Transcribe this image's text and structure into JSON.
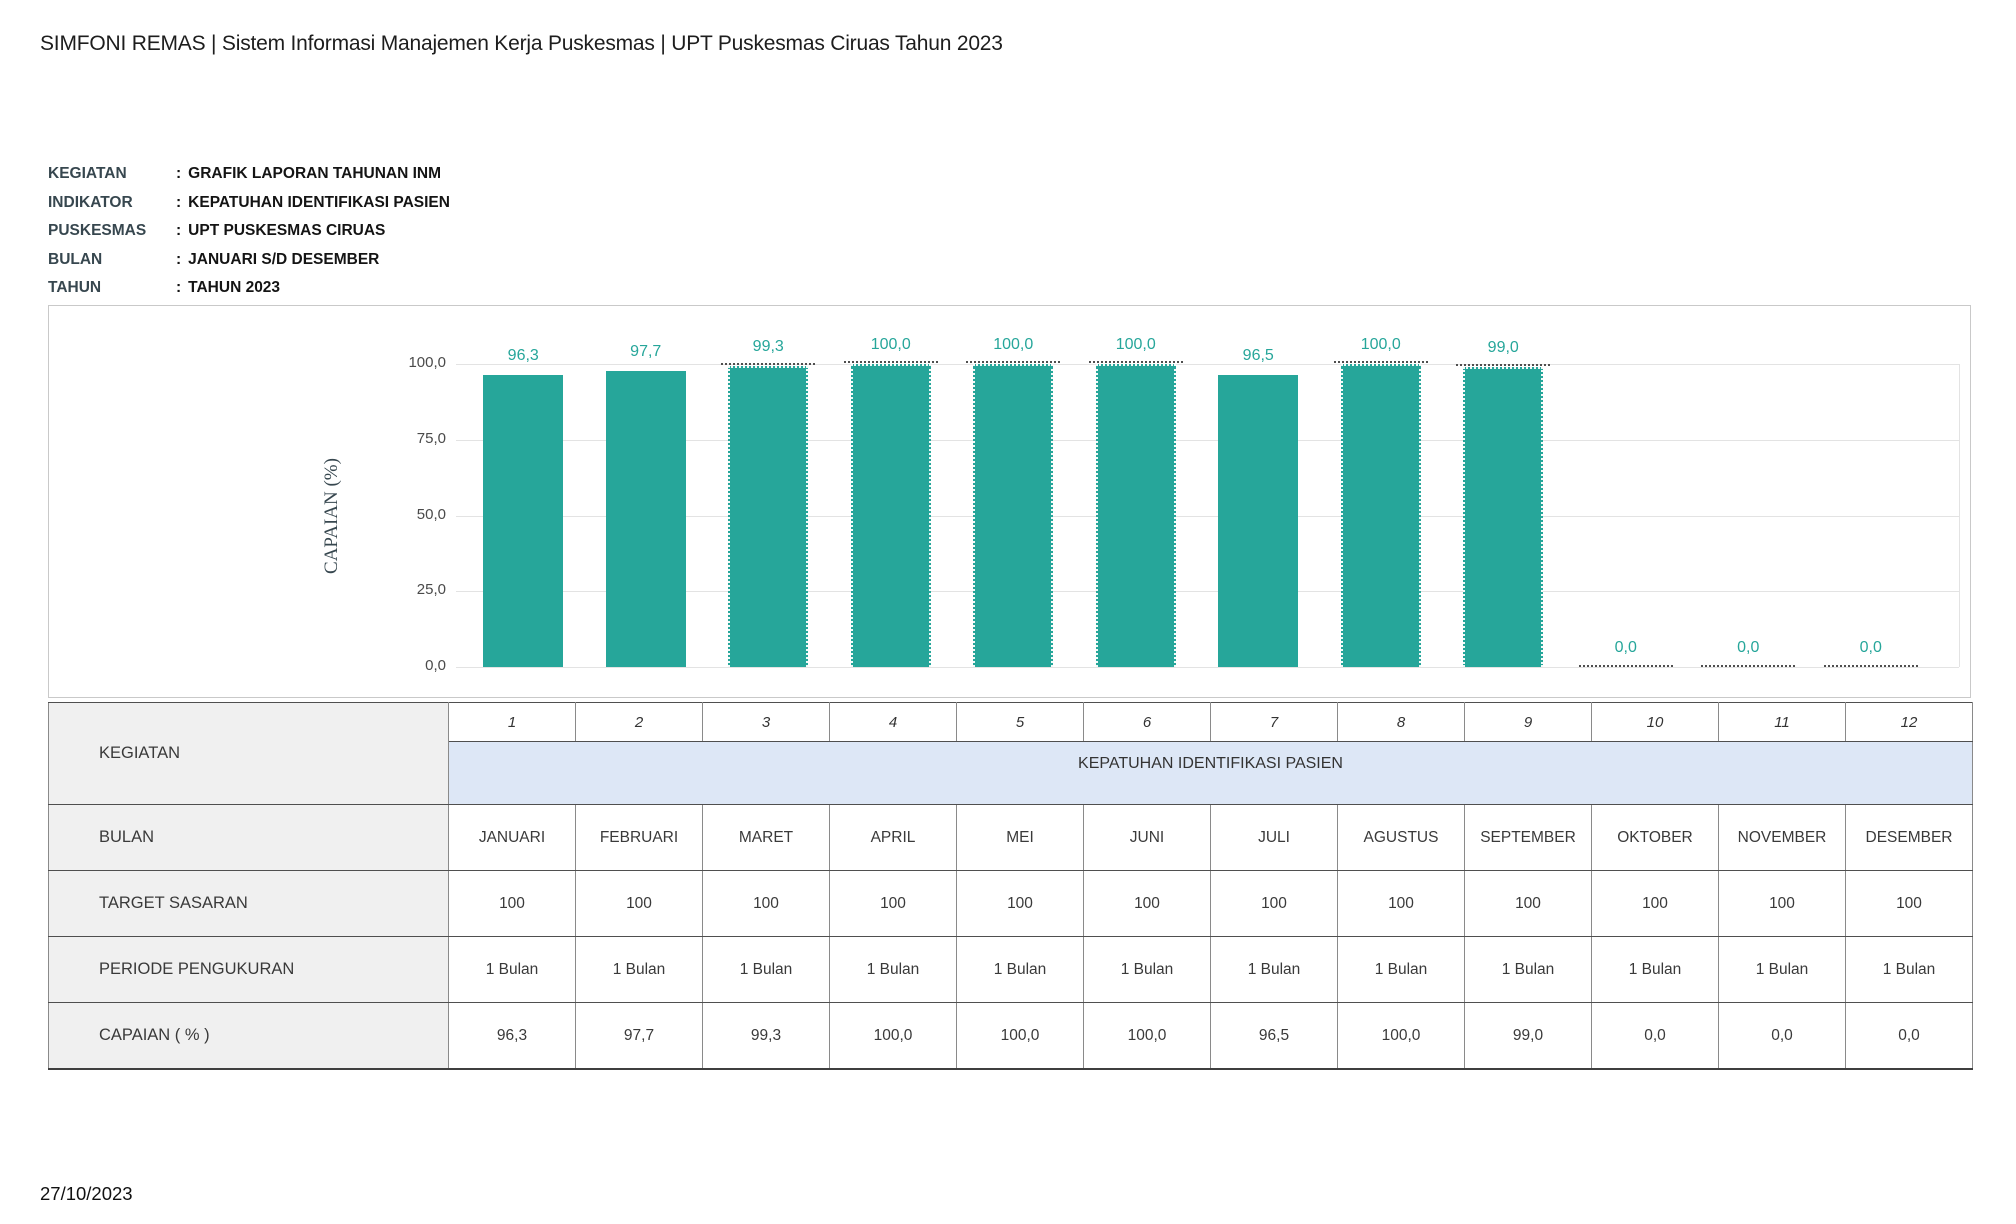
{
  "page": {
    "header_title": "SIMFONI REMAS | Sistem Informasi Manajemen Kerja Puskesmas | UPT Puskesmas Ciruas Tahun 2023",
    "footer_date": "27/10/2023"
  },
  "report_info": {
    "colon": ":",
    "rows": [
      {
        "label": "KEGIATAN",
        "value": "GRAFIK LAPORAN TAHUNAN INM"
      },
      {
        "label": "INDIKATOR",
        "value": "KEPATUHAN IDENTIFIKASI PASIEN"
      },
      {
        "label": "PUSKESMAS",
        "value": "UPT PUSKESMAS CIRUAS"
      },
      {
        "label": "BULAN",
        "value": "JANUARI S/D DESEMBER"
      },
      {
        "label": "TAHUN",
        "value": "TAHUN 2023"
      }
    ]
  },
  "chart_data": {
    "type": "bar",
    "title": "",
    "xlabel": "",
    "ylabel": "CAPAIAN (%)",
    "ylim": [
      0,
      100
    ],
    "grid": true,
    "legend": "none",
    "yticks_values": [
      100,
      75,
      50,
      25,
      0
    ],
    "yticks_labels": [
      "100,0",
      "75,0",
      "50,0",
      "25,0",
      "0,0"
    ],
    "categories": [
      "JANUARI",
      "FEBRUARI",
      "MARET",
      "APRIL",
      "MEI",
      "JUNI",
      "JULI",
      "AGUSTUS",
      "SEPTEMBER",
      "OKTOBER",
      "NOVEMBER",
      "DESEMBER"
    ],
    "category_numbers": [
      "1",
      "2",
      "3",
      "4",
      "5",
      "6",
      "7",
      "8",
      "9",
      "10",
      "11",
      "12"
    ],
    "values": [
      96.3,
      97.7,
      99.3,
      100.0,
      100.0,
      100.0,
      96.5,
      100.0,
      99.0,
      0.0,
      0.0,
      0.0
    ],
    "value_labels": [
      "96,3",
      "97,7",
      "99,3",
      "100,0",
      "100,0",
      "100,0",
      "96,5",
      "100,0",
      "99,0",
      "0,0",
      "0,0",
      "0,0"
    ],
    "dashed_bars": [
      false,
      false,
      true,
      true,
      true,
      true,
      false,
      true,
      true,
      true,
      true,
      true
    ],
    "bar_color": "#26A69A",
    "value_label_color": "#26A69A"
  },
  "table": {
    "kegiatan_label": "KEGIATAN",
    "indicator_value": "KEPATUHAN IDENTIFIKASI PASIEN",
    "col_numbers": [
      "1",
      "2",
      "3",
      "4",
      "5",
      "6",
      "7",
      "8",
      "9",
      "10",
      "11",
      "12"
    ],
    "rows": [
      {
        "label": "BULAN",
        "cells": [
          "JANUARI",
          "FEBRUARI",
          "MARET",
          "APRIL",
          "MEI",
          "JUNI",
          "JULI",
          "AGUSTUS",
          "SEPTEMBER",
          "OKTOBER",
          "NOVEMBER",
          "DESEMBER"
        ]
      },
      {
        "label": "TARGET SASARAN",
        "cells": [
          "100",
          "100",
          "100",
          "100",
          "100",
          "100",
          "100",
          "100",
          "100",
          "100",
          "100",
          "100"
        ]
      },
      {
        "label": "PERIODE PENGUKURAN",
        "cells": [
          "1 Bulan",
          "1 Bulan",
          "1 Bulan",
          "1 Bulan",
          "1 Bulan",
          "1 Bulan",
          "1 Bulan",
          "1 Bulan",
          "1 Bulan",
          "1 Bulan",
          "1 Bulan",
          "1 Bulan"
        ]
      },
      {
        "label": "CAPAIAN ( % )",
        "cells": [
          "96,3",
          "97,7",
          "99,3",
          "100,0",
          "100,0",
          "100,0",
          "96,5",
          "100,0",
          "99,0",
          "0,0",
          "0,0",
          "0,0"
        ]
      }
    ]
  },
  "colors": {
    "bar": "#26A69A",
    "bar_value_label": "#26A69A",
    "indicator_band": "#dde7f6",
    "label_column_bg": "#f0f0f0",
    "info_label": "#37474f",
    "gridline": "#e3e3e3"
  }
}
